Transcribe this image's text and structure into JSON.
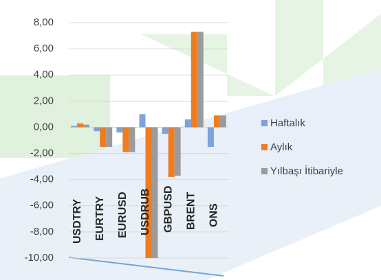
{
  "chart_data": {
    "type": "bar",
    "categories": [
      "USDTRY",
      "EURTRY",
      "EURUSD",
      "USDRUB",
      "GBPUSD",
      "BRENT",
      "ONS"
    ],
    "series": [
      {
        "name": "Haftalık",
        "color": "#7ea3db",
        "values": [
          0.1,
          -0.3,
          -0.4,
          1.0,
          -0.5,
          0.6,
          -1.5
        ]
      },
      {
        "name": "Aylık",
        "color": "#f07c22",
        "values": [
          0.3,
          -1.5,
          -1.9,
          -10.0,
          -3.8,
          7.3,
          0.9
        ]
      },
      {
        "name": "Yılbaşı İtibariyle",
        "color": "#9b9b9b",
        "values": [
          0.2,
          -1.5,
          -1.9,
          -10.0,
          -3.7,
          7.3,
          0.9
        ]
      }
    ],
    "ylim": [
      -10,
      8
    ],
    "yticks": [
      {
        "value": 8,
        "label": "8,00"
      },
      {
        "value": 6,
        "label": "6,00"
      },
      {
        "value": 4,
        "label": "4,00"
      },
      {
        "value": 2,
        "label": "2,00"
      },
      {
        "value": 0,
        "label": "0,00"
      },
      {
        "value": -2,
        "label": "-2,00"
      },
      {
        "value": -4,
        "label": "-4,00"
      },
      {
        "value": -6,
        "label": "-6,00"
      },
      {
        "value": -8,
        "label": "-8,00"
      },
      {
        "value": -10,
        "label": "-10,00"
      }
    ],
    "grid": true
  }
}
